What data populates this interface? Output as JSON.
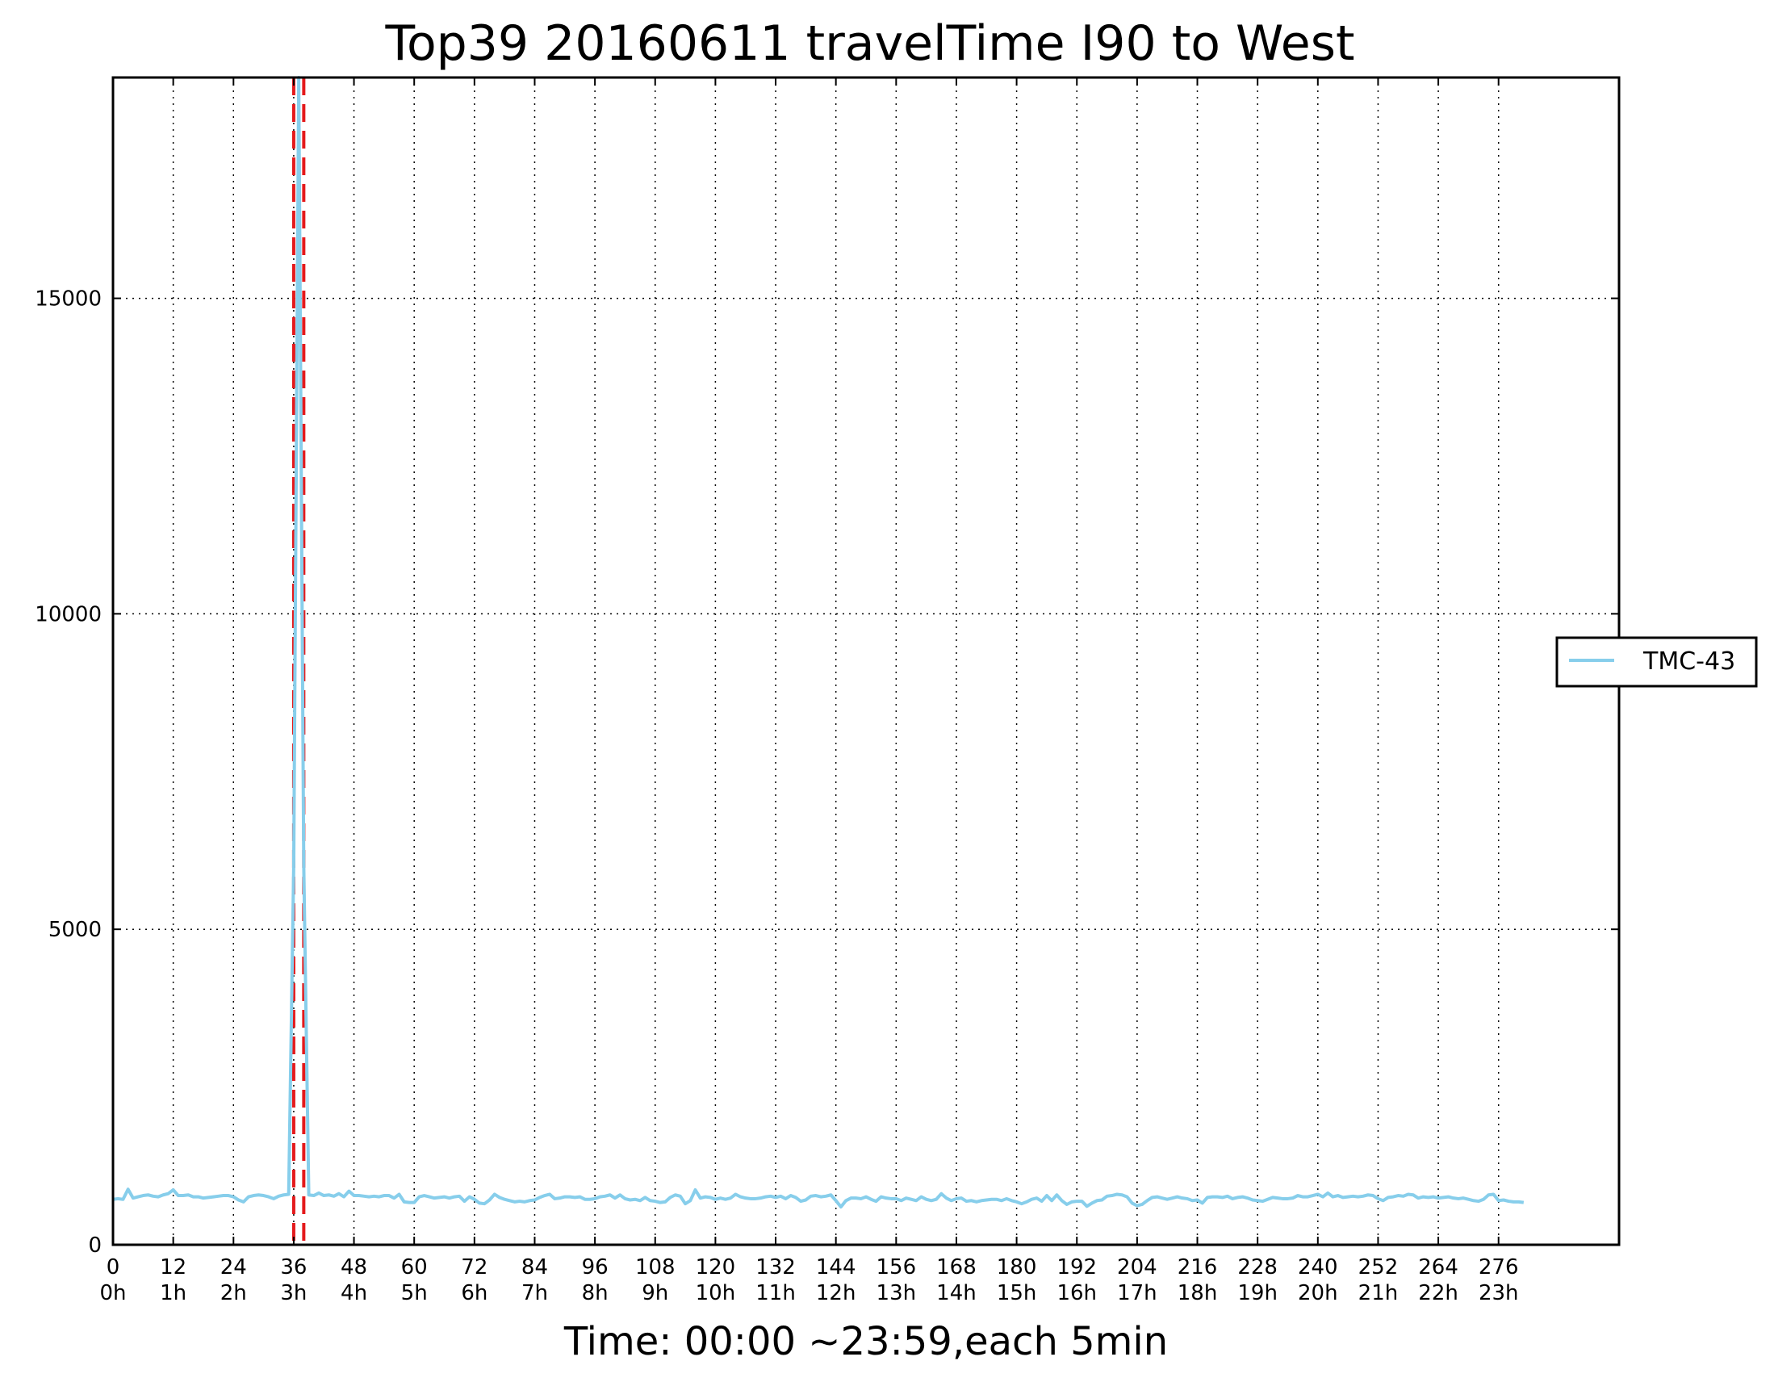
{
  "chart_data": {
    "type": "line",
    "title": "Top39 20160611 travelTime I90 to West",
    "xlabel": "Time: 00:00 ~23:59,each 5min",
    "ylabel": "",
    "xlim": [
      0,
      300
    ],
    "ylim": [
      0,
      18500
    ],
    "grid": true,
    "legend_position": "right",
    "x_ticks": [
      0,
      12,
      24,
      36,
      48,
      60,
      72,
      84,
      96,
      108,
      120,
      132,
      144,
      156,
      168,
      180,
      192,
      204,
      216,
      228,
      240,
      252,
      264,
      276
    ],
    "x_tick_labels_top": [
      "0",
      "12",
      "24",
      "36",
      "48",
      "60",
      "72",
      "84",
      "96",
      "108",
      "120",
      "132",
      "144",
      "156",
      "168",
      "180",
      "192",
      "204",
      "216",
      "228",
      "240",
      "252",
      "264",
      "276"
    ],
    "x_tick_labels_bottom": [
      "0h",
      "1h",
      "2h",
      "3h",
      "4h",
      "5h",
      "6h",
      "7h",
      "8h",
      "9h",
      "10h",
      "11h",
      "12h",
      "13h",
      "14h",
      "15h",
      "16h",
      "17h",
      "18h",
      "19h",
      "20h",
      "21h",
      "22h",
      "23h"
    ],
    "y_ticks": [
      0,
      5000,
      10000,
      15000
    ],
    "y_tick_labels": [
      "0",
      "5000",
      "10000",
      "15000"
    ],
    "vlines": [
      {
        "x": 36,
        "color": "#e41a1c",
        "style": "dashed"
      },
      {
        "x": 38,
        "color": "#e41a1c",
        "style": "dashed"
      }
    ],
    "series": [
      {
        "name": "TMC-43",
        "color": "#87ceeb",
        "y_start_x": 0,
        "values": [
          720,
          730,
          720,
          880,
          740,
          760,
          780,
          790,
          770,
          760,
          790,
          810,
          870,
          780,
          780,
          790,
          760,
          760,
          740,
          750,
          760,
          770,
          780,
          780,
          760,
          710,
          680,
          760,
          780,
          790,
          780,
          760,
          730,
          770,
          790,
          800,
          6000,
          18500,
          6000,
          790,
          780,
          820,
          780,
          790,
          770,
          810,
          760,
          850,
          780,
          780,
          770,
          760,
          770,
          760,
          780,
          780,
          740,
          800,
          680,
          670,
          670,
          760,
          780,
          760,
          740,
          750,
          760,
          740,
          760,
          770,
          690,
          760,
          720,
          660,
          650,
          710,
          800,
          750,
          720,
          700,
          680,
          690,
          680,
          700,
          710,
          750,
          780,
          800,
          730,
          740,
          760,
          760,
          750,
          760,
          720,
          720,
          730,
          760,
          770,
          790,
          740,
          790,
          730,
          710,
          720,
          700,
          750,
          700,
          690,
          670,
          680,
          750,
          790,
          770,
          650,
          700,
          870,
          740,
          760,
          750,
          720,
          740,
          720,
          740,
          800,
          760,
          740,
          730,
          730,
          740,
          760,
          770,
          750,
          770,
          730,
          780,
          750,
          690,
          710,
          770,
          780,
          760,
          770,
          790,
          700,
          600,
          700,
          740,
          740,
          730,
          760,
          720,
          690,
          760,
          740,
          730,
          730,
          700,
          740,
          720,
          700,
          760,
          720,
          700,
          720,
          810,
          740,
          700,
          730,
          740,
          690,
          700,
          680,
          700,
          710,
          720,
          720,
          700,
          730,
          700,
          680,
          650,
          680,
          720,
          740,
          690,
          780,
          700,
          790,
          700,
          640,
          680,
          690,
          690,
          610,
          660,
          700,
          710,
          770,
          780,
          800,
          790,
          760,
          660,
          620,
          640,
          700,
          750,
          760,
          740,
          720,
          740,
          760,
          740,
          730,
          700,
          710,
          660,
          750,
          760,
          760,
          750,
          770,
          730,
          750,
          760,
          740,
          710,
          700,
          690,
          720,
          750,
          740,
          730,
          730,
          740,
          780,
          760,
          760,
          780,
          800,
          760,
          820,
          760,
          780,
          750,
          760,
          770,
          760,
          770,
          790,
          780,
          730,
          700,
          750,
          760,
          780,
          770,
          800,
          790,
          740,
          760,
          750,
          760,
          740,
          750,
          760,
          740,
          730,
          740,
          720,
          700,
          690,
          720,
          790,
          800,
          700,
          710,
          690,
          680,
          680,
          670
        ]
      }
    ]
  }
}
